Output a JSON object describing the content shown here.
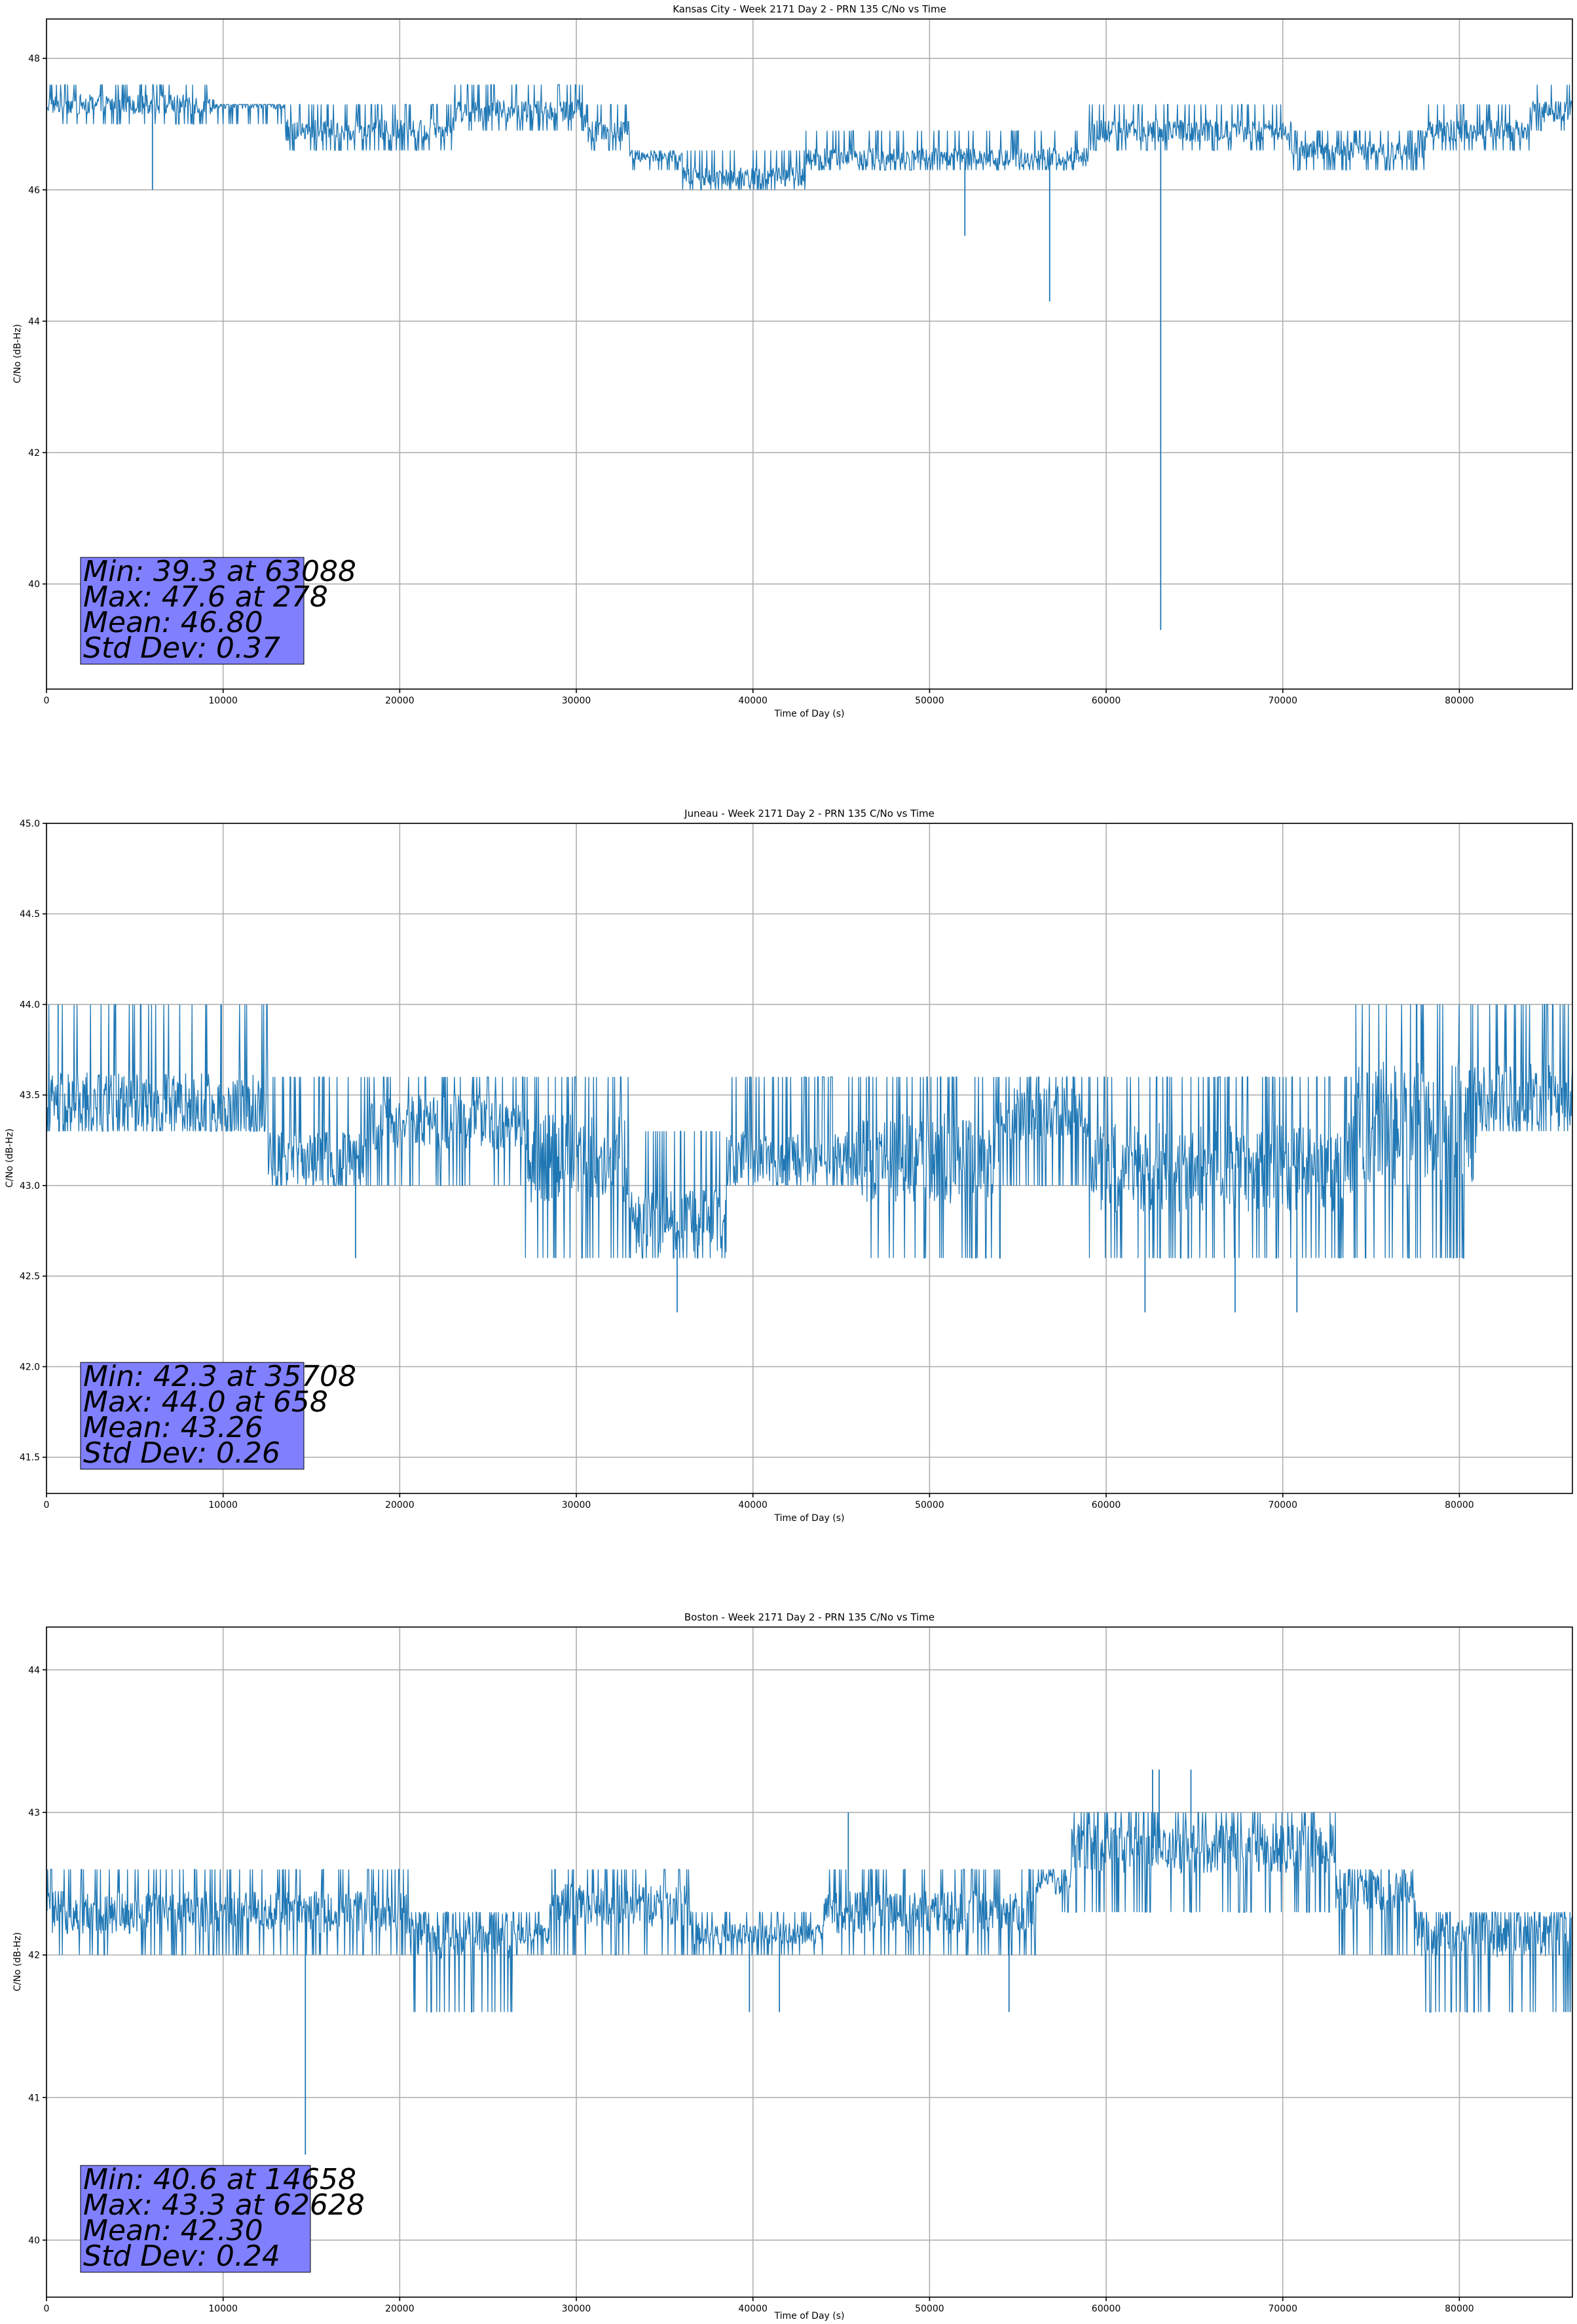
{
  "chart_data": [
    {
      "type": "line",
      "title": "Kansas City - Week 2171 Day 2 - PRN 135 C/No vs Time",
      "xlabel": "Time of Day (s)",
      "ylabel": "C/No (dB-Hz)",
      "xlim": [
        0,
        86400
      ],
      "ylim": [
        38.4,
        48.6
      ],
      "xticks": [
        0,
        10000,
        20000,
        30000,
        40000,
        50000,
        60000,
        70000,
        80000
      ],
      "yticks": [
        40,
        42,
        44,
        46,
        48
      ],
      "grid": true,
      "series": [
        {
          "color": "#1f77b4",
          "quantization": 0.33,
          "segments": [
            [
              0,
              9500,
              47.3,
              47.0,
              47.6
            ],
            [
              9500,
              13500,
              47.3,
              47.0,
              47.3
            ],
            [
              13500,
              23000,
              46.9,
              46.6,
              47.3
            ],
            [
              23000,
              30500,
              47.2,
              46.9,
              47.6
            ],
            [
              30500,
              33000,
              46.9,
              46.6,
              47.3
            ],
            [
              33000,
              36000,
              46.5,
              46.3,
              46.6
            ],
            [
              36000,
              43000,
              46.2,
              46.0,
              46.6
            ],
            [
              43000,
              59000,
              46.5,
              46.3,
              46.9
            ],
            [
              59000,
              70500,
              46.9,
              46.6,
              47.3
            ],
            [
              70500,
              78000,
              46.6,
              46.3,
              46.9
            ],
            [
              78000,
              84000,
              46.9,
              46.6,
              47.3
            ],
            [
              84000,
              86400,
              47.2,
              46.9,
              47.6
            ]
          ],
          "dips": [
            [
              6000,
              46.0
            ],
            [
              52000,
              45.3
            ],
            [
              56800,
              44.3
            ],
            [
              63088,
              39.3
            ]
          ],
          "spikes": [
            [
              278,
              47.6
            ]
          ]
        }
      ],
      "annotation": [
        "Min: 39.3 at 63088",
        "Max: 47.6 at 278",
        "Mean: 46.80",
        "Std Dev: 0.37"
      ],
      "annotation_color": "#8080ff"
    },
    {
      "type": "line",
      "title": "Juneau - Week 2171 Day 2 - PRN 135 C/No vs Time",
      "xlabel": "Time of Day (s)",
      "ylabel": "C/No (dB-Hz)",
      "xlim": [
        0,
        86400
      ],
      "ylim": [
        41.3,
        45.0
      ],
      "xticks": [
        0,
        10000,
        20000,
        30000,
        40000,
        50000,
        60000,
        70000,
        80000
      ],
      "yticks": [
        41.5,
        42.0,
        42.5,
        43.0,
        43.5,
        44.0,
        44.5,
        45.0
      ],
      "grid": true,
      "series": [
        {
          "color": "#1f77b4",
          "quantization": 0.33,
          "segments": [
            [
              0,
              12500,
              43.45,
              43.3,
              44.0
            ],
            [
              12500,
              18000,
              43.15,
              43.0,
              43.6
            ],
            [
              18000,
              27000,
              43.35,
              43.0,
              43.6
            ],
            [
              27000,
              33000,
              43.15,
              42.6,
              43.6
            ],
            [
              33000,
              38500,
              42.8,
              42.6,
              43.3
            ],
            [
              38500,
              46000,
              43.15,
              43.0,
              43.6
            ],
            [
              46000,
              54000,
              43.15,
              42.6,
              43.6
            ],
            [
              54000,
              59000,
              43.4,
              43.0,
              43.6
            ],
            [
              59000,
              74000,
              43.1,
              42.6,
              43.6
            ],
            [
              74000,
              81000,
              43.35,
              42.6,
              44.0
            ],
            [
              81000,
              86400,
              43.5,
              43.3,
              44.0
            ]
          ],
          "dips": [
            [
              17500,
              42.6
            ],
            [
              35708,
              42.3
            ],
            [
              62200,
              42.3
            ],
            [
              67300,
              42.3
            ],
            [
              70800,
              42.3
            ]
          ],
          "spikes": [
            [
              658,
              44.0
            ],
            [
              9900,
              44.0
            ]
          ]
        }
      ],
      "annotation": [
        "Min: 42.3 at 35708",
        "Max: 44.0 at 658",
        "Mean: 43.26",
        "Std Dev: 0.26"
      ],
      "annotation_color": "#8080ff"
    },
    {
      "type": "line",
      "title": "Boston - Week 2171 Day 2 - PRN 135 C/No vs Time",
      "xlabel": "Time of Day (s)",
      "ylabel": "C/No (dB-Hz)",
      "xlim": [
        0,
        86400
      ],
      "ylim": [
        39.6,
        44.3
      ],
      "xticks": [
        0,
        10000,
        20000,
        30000,
        40000,
        50000,
        60000,
        70000,
        80000
      ],
      "yticks": [
        40,
        41,
        42,
        43,
        44
      ],
      "grid": true,
      "series": [
        {
          "color": "#1f77b4",
          "quantization": 0.33,
          "segments": [
            [
              0,
              20500,
              42.3,
              42.0,
              42.6
            ],
            [
              20500,
              26500,
              42.15,
              41.6,
              42.3
            ],
            [
              26500,
              28500,
              42.15,
              42.0,
              42.3
            ],
            [
              28500,
              36500,
              42.35,
              42.0,
              42.6
            ],
            [
              36500,
              44000,
              42.15,
              42.0,
              42.3
            ],
            [
              44000,
              56000,
              42.3,
              42.0,
              42.6
            ],
            [
              56000,
              58000,
              42.5,
              42.3,
              42.6
            ],
            [
              58000,
              73000,
              42.75,
              42.3,
              43.0
            ],
            [
              73000,
              77500,
              42.45,
              42.0,
              42.6
            ],
            [
              77500,
              86400,
              42.15,
              41.6,
              42.3
            ]
          ],
          "dips": [
            [
              14658,
              40.6
            ],
            [
              39800,
              41.6
            ],
            [
              41500,
              41.6
            ],
            [
              54500,
              41.6
            ],
            [
              86000,
              41.6
            ]
          ],
          "spikes": [
            [
              45400,
              43.0
            ],
            [
              62628,
              43.3
            ],
            [
              63000,
              43.3
            ],
            [
              64800,
              43.3
            ]
          ]
        }
      ],
      "annotation": [
        "Min: 40.6 at 14658",
        "Max: 43.3 at 62628",
        "Mean: 42.30",
        "Std Dev: 0.24"
      ],
      "annotation_color": "#8080ff"
    }
  ]
}
